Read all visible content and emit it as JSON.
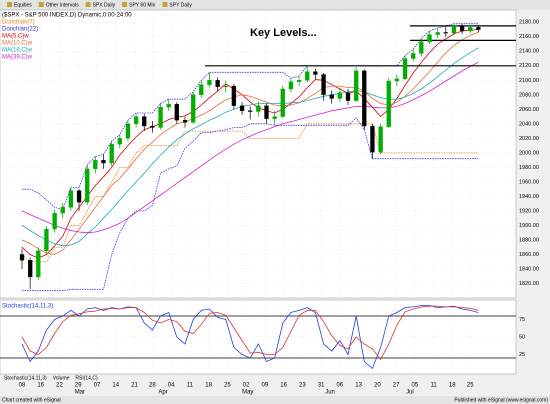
{
  "toolbar": [
    "Equities",
    "Other Intervals",
    "SPX Daily",
    "SPY 60 Min",
    "SPY Daily"
  ],
  "footer": {
    "left": "Chart created with eSignal",
    "right": "Published with eSignal (www.esignal.com)"
  },
  "tabs": [
    "Stochastic(14,11,3)",
    "Volume",
    "RSI(14,C)"
  ],
  "chart_data": {
    "type": "candlestick",
    "title": "($SPX - S&P 500 INDEX,D) Dynamic,0:00-24:00",
    "annotation": "Key Levels...",
    "key_levels": [
      2175,
      2155,
      2120
    ],
    "ylim": [
      1800,
      2190
    ],
    "yticks": [
      {
        "value": 1820,
        "label": "1820.00"
      },
      {
        "value": 1840,
        "label": "1840.00"
      },
      {
        "value": 1860,
        "label": "1860.00"
      },
      {
        "value": 1880,
        "label": "1880.00"
      },
      {
        "value": 1900,
        "label": "1900.00"
      },
      {
        "value": 1920,
        "label": "1920.00"
      },
      {
        "value": 1940,
        "label": "1940.00"
      },
      {
        "value": 1960,
        "label": "1960.00"
      },
      {
        "value": 1980,
        "label": "1980.00"
      },
      {
        "value": 2000,
        "label": "2000.00"
      },
      {
        "value": 2020,
        "label": "2020.00"
      },
      {
        "value": 2040,
        "label": "2040.00"
      },
      {
        "value": 2060,
        "label": "2060.00"
      },
      {
        "value": 2080,
        "label": "2080.00"
      },
      {
        "value": 2100,
        "label": "2100.00"
      },
      {
        "value": 2120,
        "label": "2120.00"
      },
      {
        "value": 2140,
        "label": "2140.00"
      },
      {
        "value": 2160,
        "label": "2160.00"
      },
      {
        "value": 2180,
        "label": "2180.00"
      }
    ],
    "xticks": [
      {
        "value": 0,
        "label": "08"
      },
      {
        "value": 2.3,
        "label": "16"
      },
      {
        "value": 4.6,
        "label": "22"
      },
      {
        "value": 6.9,
        "label": "29"
      },
      {
        "value": 9.2,
        "label": "07"
      },
      {
        "value": 11.5,
        "label": "14"
      },
      {
        "value": 13.8,
        "label": "21"
      },
      {
        "value": 16,
        "label": "28"
      },
      {
        "value": 18.3,
        "label": "04"
      },
      {
        "value": 20.6,
        "label": "11"
      },
      {
        "value": 22.9,
        "label": "18"
      },
      {
        "value": 25.2,
        "label": "25"
      },
      {
        "value": 27.5,
        "label": "02"
      },
      {
        "value": 29.8,
        "label": "09"
      },
      {
        "value": 32.1,
        "label": "16"
      },
      {
        "value": 34.4,
        "label": "23"
      },
      {
        "value": 36.7,
        "label": "31"
      },
      {
        "value": 39,
        "label": "06"
      },
      {
        "value": 41.3,
        "label": "13"
      },
      {
        "value": 43.6,
        "label": "20"
      },
      {
        "value": 45.9,
        "label": "27"
      },
      {
        "value": 48.2,
        "label": "05"
      },
      {
        "value": 50.5,
        "label": "11"
      },
      {
        "value": 52.8,
        "label": "18"
      },
      {
        "value": 55,
        "label": "25"
      }
    ],
    "months": [
      {
        "value": 7.1,
        "label": "Mar"
      },
      {
        "value": 17.3,
        "label": "Apr"
      },
      {
        "value": 27.7,
        "label": "May"
      },
      {
        "value": 37.8,
        "label": "Jun"
      },
      {
        "value": 47.6,
        "label": "Jul"
      }
    ],
    "open": [
      1860,
      1852,
      1829,
      1865,
      1895,
      1917,
      1925,
      1948,
      1932,
      1978,
      1990,
      1986,
      2012,
      2020,
      2040,
      2050,
      2037,
      2035,
      2063,
      2067,
      2045,
      2042,
      2080,
      2094,
      2100,
      2091,
      2092,
      2065,
      2058,
      2057,
      2065,
      2047,
      2050,
      2088,
      2098,
      2100,
      2112,
      2108,
      2080,
      2075,
      2083,
      2072,
      2113,
      2037,
      2001,
      2036,
      2099,
      2102,
      2130,
      2137,
      2153,
      2163,
      2166,
      2165,
      2175,
      2168,
      2173
    ],
    "high": [
      1868,
      1856,
      1870,
      1899,
      1922,
      1931,
      1952,
      1950,
      1983,
      1995,
      1998,
      2016,
      2025,
      2045,
      2055,
      2054,
      2044,
      2068,
      2074,
      2070,
      2050,
      2084,
      2100,
      2111,
      2104,
      2099,
      2095,
      2070,
      2064,
      2071,
      2068,
      2058,
      2092,
      2103,
      2106,
      2120,
      2116,
      2110,
      2086,
      2090,
      2088,
      2118,
      2115,
      2040,
      2040,
      2103,
      2108,
      2134,
      2143,
      2158,
      2168,
      2172,
      2175,
      2178,
      2178,
      2176,
      2176
    ],
    "low": [
      1840,
      1812,
      1825,
      1860,
      1890,
      1910,
      1920,
      1920,
      1928,
      1972,
      1978,
      1982,
      2006,
      2016,
      2035,
      2030,
      2028,
      2032,
      2058,
      2040,
      2035,
      2040,
      2076,
      2090,
      2085,
      2083,
      2060,
      2052,
      2046,
      2050,
      2040,
      2038,
      2048,
      2084,
      2092,
      2097,
      2101,
      2072,
      2068,
      2070,
      2066,
      2070,
      2032,
      1992,
      1998,
      2034,
      2092,
      2100,
      2126,
      2133,
      2150,
      2158,
      2160,
      2162,
      2164,
      2165,
      2166
    ],
    "close": [
      1852,
      1829,
      1865,
      1895,
      1917,
      1925,
      1948,
      1932,
      1978,
      1990,
      1986,
      2012,
      2020,
      2040,
      2050,
      2037,
      2035,
      2063,
      2067,
      2045,
      2042,
      2080,
      2094,
      2100,
      2091,
      2092,
      2065,
      2058,
      2057,
      2065,
      2047,
      2050,
      2088,
      2098,
      2100,
      2112,
      2108,
      2080,
      2075,
      2083,
      2072,
      2113,
      2037,
      2001,
      2036,
      2099,
      2102,
      2130,
      2137,
      2153,
      2163,
      2166,
      2165,
      2175,
      2168,
      2173,
      2170
    ],
    "series": [
      {
        "name": "Donchian(7)",
        "color": "#f08020",
        "values": [
          1860,
          1850,
          1850,
          1850,
          1870,
          1870,
          1900,
          1900,
          1920,
          1940,
          1940,
          1960,
          1980,
          1980,
          2000,
          2010,
          2010,
          2010,
          2010,
          2010,
          2030,
          2030,
          2030,
          2030,
          2030,
          2030,
          2030,
          2030,
          2020,
          2020,
          2020,
          2020,
          2020,
          2020,
          2020,
          2040,
          2040,
          2040,
          2040,
          2040,
          2040,
          2040,
          2040,
          2040,
          2000,
          2000,
          2000,
          2000,
          2000,
          2000,
          2000,
          2000,
          2000,
          2000,
          2000,
          2000,
          2000
        ]
      },
      {
        "name": "Donchian(22)",
        "color": "#3030e0",
        "upper": [
          1950,
          1950,
          1945,
          1935,
          1925,
          1922,
          1952,
          1952,
          1983,
          1995,
          1998,
          2016,
          2025,
          2045,
          2055,
          2055,
          2055,
          2068,
          2074,
          2074,
          2074,
          2084,
          2100,
          2111,
          2111,
          2111,
          2111,
          2111,
          2111,
          2111,
          2111,
          2111,
          2111,
          2103,
          2106,
          2120,
          2120,
          2120,
          2120,
          2120,
          2120,
          2120,
          2120,
          2120,
          2120,
          2120,
          2120,
          2134,
          2143,
          2158,
          2168,
          2172,
          2175,
          2178,
          2178,
          2178,
          2178
        ],
        "lower": [
          1810,
          1810,
          1810,
          1810,
          1810,
          1810,
          1812,
          1812,
          1812,
          1812,
          1812,
          1860,
          1890,
          1910,
          1920,
          1920,
          1928,
          1972,
          1978,
          1982,
          2006,
          2016,
          2028,
          2028,
          2030,
          2032,
          2035,
          2035,
          2040,
          2040,
          2040,
          2038,
          2038,
          2038,
          2038,
          2038,
          2038,
          2038,
          2038,
          2038,
          2038,
          2048,
          2032,
          1992,
          1992,
          1992,
          1992,
          1992,
          1992,
          1992,
          1992,
          1992,
          1992,
          1992,
          1992,
          1992,
          1992
        ]
      },
      {
        "name": "MA(5,C)w",
        "color": "#e00000",
        "values": [
          1870,
          1860,
          1855,
          1860,
          1872,
          1885,
          1910,
          1925,
          1940,
          1955,
          1967,
          1980,
          1997,
          2010,
          2022,
          2032,
          2036,
          2040,
          2046,
          2049,
          2051,
          2057,
          2066,
          2076,
          2085,
          2095,
          2088,
          2080,
          2070,
          2062,
          2058,
          2055,
          2060,
          2068,
          2077,
          2090,
          2101,
          2100,
          2094,
          2088,
          2082,
          2085,
          2075,
          2063,
          2050,
          2060,
          2075,
          2093,
          2110,
          2125,
          2138,
          2150,
          2157,
          2164,
          2168,
          2169,
          2170
        ]
      },
      {
        "name": "MA(10,C)w",
        "color": "#e07030",
        "values": [
          1880,
          1875,
          1868,
          1862,
          1860,
          1866,
          1880,
          1895,
          1910,
          1925,
          1940,
          1955,
          1965,
          1978,
          1992,
          2005,
          2015,
          2025,
          2033,
          2040,
          2043,
          2047,
          2052,
          2058,
          2066,
          2073,
          2077,
          2080,
          2078,
          2074,
          2070,
          2066,
          2065,
          2066,
          2069,
          2075,
          2082,
          2090,
          2092,
          2092,
          2090,
          2090,
          2085,
          2075,
          2068,
          2066,
          2070,
          2078,
          2088,
          2100,
          2112,
          2125,
          2138,
          2148,
          2156,
          2162,
          2166
        ]
      },
      {
        "name": "MA(18,C)w",
        "color": "#20a8c0",
        "values": [
          1900,
          1893,
          1886,
          1880,
          1875,
          1872,
          1873,
          1878,
          1888,
          1898,
          1910,
          1922,
          1935,
          1948,
          1960,
          1972,
          1985,
          1997,
          2008,
          2018,
          2026,
          2033,
          2039,
          2045,
          2050,
          2056,
          2060,
          2064,
          2066,
          2068,
          2068,
          2068,
          2068,
          2069,
          2070,
          2072,
          2075,
          2078,
          2080,
          2082,
          2084,
          2086,
          2084,
          2080,
          2076,
          2074,
          2074,
          2077,
          2082,
          2088,
          2096,
          2105,
          2114,
          2123,
          2131,
          2138,
          2145
        ]
      },
      {
        "name": "MA(39,C)w",
        "color": "#d020d0",
        "values": [
          1920,
          1915,
          1910,
          1905,
          1900,
          1896,
          1893,
          1891,
          1890,
          1891,
          1894,
          1898,
          1903,
          1910,
          1918,
          1926,
          1934,
          1942,
          1950,
          1958,
          1966,
          1974,
          1982,
          1990,
          1998,
          2005,
          2012,
          2018,
          2023,
          2028,
          2032,
          2036,
          2040,
          2043,
          2046,
          2049,
          2052,
          2055,
          2058,
          2060,
          2062,
          2064,
          2064,
          2063,
          2062,
          2062,
          2064,
          2068,
          2073,
          2079,
          2085,
          2092,
          2099,
          2106,
          2113,
          2119,
          2125
        ]
      }
    ],
    "stochastic": {
      "title": "Stochastic(14,11,3)",
      "ylim": [
        0,
        100
      ],
      "yticks": [
        25,
        50,
        75
      ],
      "levels": [
        80,
        20
      ],
      "series": [
        {
          "color": "#2040e0",
          "values": [
            40,
            15,
            30,
            60,
            75,
            80,
            88,
            80,
            90,
            92,
            88,
            92,
            90,
            93,
            92,
            70,
            60,
            80,
            85,
            50,
            40,
            75,
            88,
            90,
            78,
            75,
            35,
            25,
            20,
            40,
            15,
            20,
            70,
            85,
            88,
            92,
            85,
            40,
            30,
            45,
            25,
            80,
            15,
            5,
            35,
            80,
            85,
            92,
            93,
            95,
            95,
            92,
            93,
            94,
            90,
            88,
            85
          ]
        },
        {
          "color": "#e03030",
          "values": [
            50,
            30,
            25,
            35,
            55,
            72,
            81,
            83,
            86,
            87,
            90,
            91,
            90,
            92,
            92,
            85,
            74,
            70,
            75,
            72,
            58,
            55,
            68,
            84,
            85,
            81,
            63,
            45,
            27,
            28,
            25,
            25,
            35,
            58,
            81,
            88,
            88,
            72,
            52,
            38,
            33,
            50,
            40,
            33,
            18,
            40,
            67,
            86,
            90,
            93,
            94,
            94,
            93,
            93,
            92,
            91,
            88
          ]
        }
      ]
    }
  }
}
